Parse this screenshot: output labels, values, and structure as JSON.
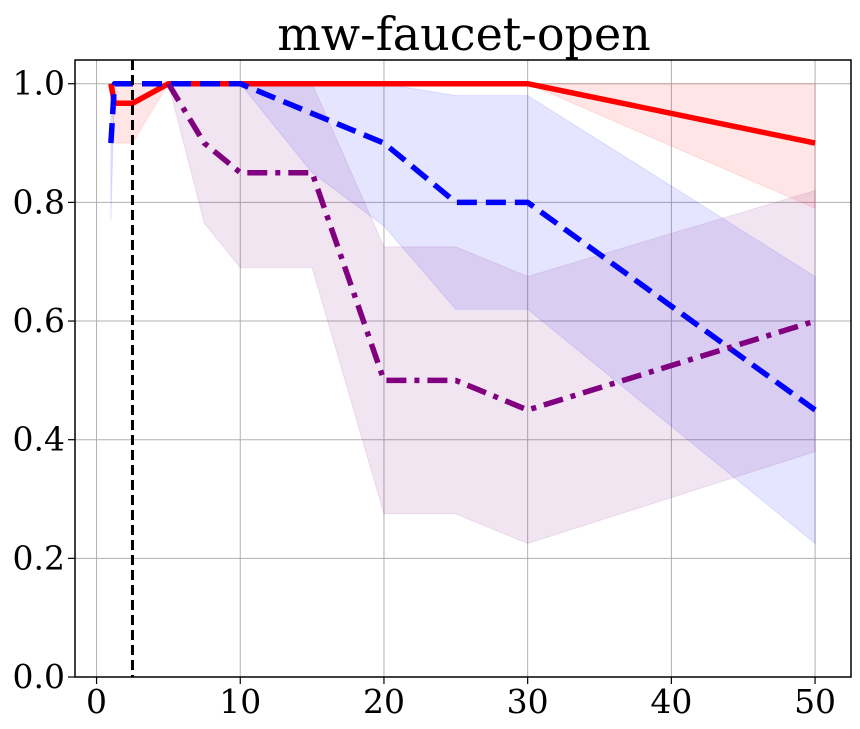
{
  "chart_data": {
    "type": "line",
    "title": "mw-faucet-open",
    "xlabel": "",
    "ylabel": "",
    "xlim": [
      -1.5,
      52.5
    ],
    "ylim": [
      0,
      1.04
    ],
    "xticks": [
      0,
      10,
      20,
      30,
      40,
      50
    ],
    "yticks": [
      0.0,
      0.2,
      0.4,
      0.6,
      0.8,
      1.0
    ],
    "grid": true,
    "vline": {
      "x": 2.5,
      "color": "#000000",
      "style": "dashed"
    },
    "series": [
      {
        "color": "#ff0000",
        "style": "solid",
        "x": [
          1,
          1.25,
          2.5,
          5,
          10,
          15,
          20,
          25,
          30,
          50
        ],
        "y": [
          1.0,
          0.967,
          0.967,
          1.0,
          1.0,
          1.0,
          1.0,
          1.0,
          1.0,
          0.9
        ],
        "lower": [
          1.0,
          0.9,
          0.9,
          1.0,
          1.0,
          1.0,
          1.0,
          1.0,
          1.0,
          0.79
        ],
        "upper": [
          1.0,
          1.0,
          1.0,
          1.0,
          1.0,
          1.0,
          1.0,
          1.0,
          1.0,
          1.0
        ]
      },
      {
        "color": "#0000ff",
        "style": "dashed",
        "x": [
          1,
          1.25,
          2.5,
          5,
          10,
          15,
          20,
          25,
          30,
          50
        ],
        "y": [
          0.9,
          1.0,
          1.0,
          1.0,
          1.0,
          0.95,
          0.9,
          0.8,
          0.8,
          0.45
        ],
        "lower": [
          0.77,
          1.0,
          1.0,
          1.0,
          1.0,
          0.85,
          0.76,
          0.62,
          0.62,
          0.225
        ],
        "upper": [
          1.0,
          1.0,
          1.0,
          1.0,
          1.0,
          1.0,
          1.0,
          0.98,
          0.98,
          0.675
        ]
      },
      {
        "color": "#800080",
        "style": "dashdot",
        "x": [
          5,
          7.5,
          10,
          15,
          20,
          25,
          30,
          50
        ],
        "y": [
          1.0,
          0.9,
          0.85,
          0.85,
          0.5,
          0.5,
          0.45,
          0.6
        ],
        "lower": [
          1.0,
          0.765,
          0.69,
          0.69,
          0.275,
          0.275,
          0.225,
          0.38
        ],
        "upper": [
          1.0,
          1.0,
          1.0,
          1.0,
          0.725,
          0.725,
          0.675,
          0.82
        ]
      }
    ]
  }
}
